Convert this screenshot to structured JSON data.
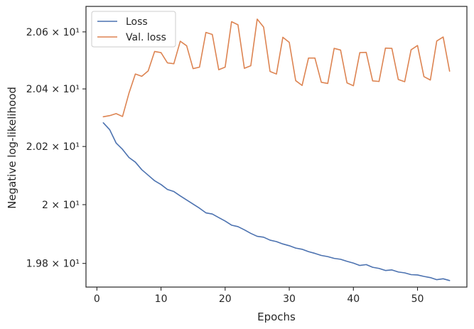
{
  "chart_data": {
    "type": "line",
    "xlabel": "Epochs",
    "ylabel": "Negative log-likelihood",
    "y_scale": "log",
    "xlim": [
      -1.7,
      57.7
    ],
    "ylim": [
      19.72,
      20.69
    ],
    "grid": false,
    "legend_position": "top-left",
    "x_ticks": [
      {
        "value": 0,
        "label": "0"
      },
      {
        "value": 10,
        "label": "10"
      },
      {
        "value": 20,
        "label": "20"
      },
      {
        "value": 30,
        "label": "30"
      },
      {
        "value": 40,
        "label": "40"
      },
      {
        "value": 50,
        "label": "50"
      }
    ],
    "y_ticks": [
      {
        "value": 19.8,
        "label": "1.98 × 10¹"
      },
      {
        "value": 20.0,
        "label": "2 × 10¹"
      },
      {
        "value": 20.2,
        "label": "2.02 × 10¹"
      },
      {
        "value": 20.4,
        "label": "2.04 × 10¹"
      },
      {
        "value": 20.6,
        "label": "2.06 × 10¹"
      }
    ],
    "x": [
      1,
      2,
      3,
      4,
      5,
      6,
      7,
      8,
      9,
      10,
      11,
      12,
      13,
      14,
      15,
      16,
      17,
      18,
      19,
      20,
      21,
      22,
      23,
      24,
      25,
      26,
      27,
      28,
      29,
      30,
      31,
      32,
      33,
      34,
      35,
      36,
      37,
      38,
      39,
      40,
      41,
      42,
      43,
      44,
      45,
      46,
      47,
      48,
      49,
      50,
      51,
      52,
      53,
      54,
      55
    ],
    "series": [
      {
        "name": "Loss",
        "color": "#4c72b0",
        "values": [
          20.282,
          20.258,
          20.212,
          20.19,
          20.162,
          20.146,
          20.12,
          20.101,
          20.082,
          20.069,
          20.052,
          20.045,
          20.03,
          20.016,
          20.002,
          19.988,
          19.972,
          19.968,
          19.956,
          19.944,
          19.93,
          19.925,
          19.914,
          19.902,
          19.892,
          19.889,
          19.879,
          19.874,
          19.866,
          19.86,
          19.852,
          19.848,
          19.84,
          19.834,
          19.827,
          19.823,
          19.817,
          19.814,
          19.807,
          19.801,
          19.793,
          19.796,
          19.787,
          19.783,
          19.776,
          19.778,
          19.771,
          19.768,
          19.762,
          19.761,
          19.756,
          19.752,
          19.745,
          19.748,
          19.742
        ]
      },
      {
        "name": "Val. loss",
        "color": "#dd8452",
        "values": [
          20.303,
          20.307,
          20.314,
          20.304,
          20.385,
          20.452,
          20.444,
          20.463,
          20.531,
          20.527,
          20.491,
          20.488,
          20.567,
          20.551,
          20.471,
          20.476,
          20.598,
          20.591,
          20.467,
          20.476,
          20.636,
          20.625,
          20.472,
          20.481,
          20.645,
          20.617,
          20.461,
          20.452,
          20.581,
          20.563,
          20.429,
          20.412,
          20.508,
          20.508,
          20.423,
          20.419,
          20.542,
          20.536,
          20.421,
          20.411,
          20.527,
          20.528,
          20.428,
          20.426,
          20.543,
          20.542,
          20.433,
          20.425,
          20.537,
          20.552,
          20.443,
          20.431,
          20.568,
          20.582,
          20.462
        ]
      }
    ]
  }
}
